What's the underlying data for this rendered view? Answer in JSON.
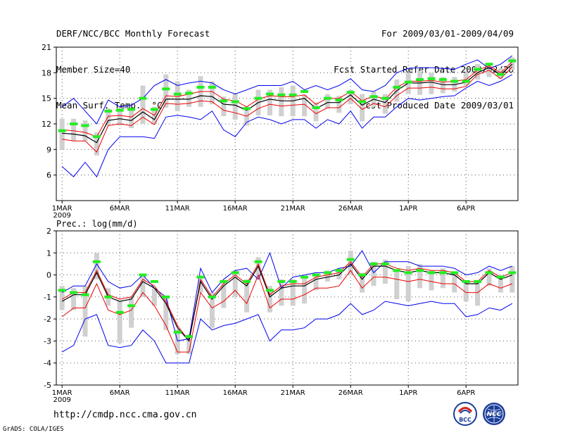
{
  "header": {
    "title": "DERF/NCC/BCC Monthly Forecast",
    "member_size": "Member Size=40",
    "variable": "Mean Surf. Temp.: °C",
    "period": "For 2009/03/01-2009/04/09",
    "started": "Fcst Started Refer Date 2009/02/28",
    "produced": "Fcst Produced Date 2009/03/01"
  },
  "footer": {
    "url": "http://cmdp.ncc.cma.gov.cn",
    "credit": "GrADS: COLA/IGES",
    "logo_bcc_text": "BCC",
    "logo_ncc_text": "NCC"
  },
  "colors": {
    "envelope": "#0000ee",
    "quartile": "#ee0000",
    "median": "#000000",
    "bar": "#d0d0d0",
    "mark": "#22ee22",
    "grid": "#555555"
  },
  "chart_data": [
    {
      "type": "line",
      "title": "Mean Surf. Temp.: °C",
      "x_tick_labels": [
        "1MAR",
        "6MAR",
        "11MAR",
        "16MAR",
        "21MAR",
        "26MAR",
        "1APR",
        "6APR"
      ],
      "x_year_label": "2009",
      "days": 40,
      "ylim": [
        3,
        21
      ],
      "yticks": [
        6,
        9,
        12,
        15,
        18,
        21
      ],
      "series": [
        {
          "name": "max",
          "values": [
            14.0,
            15.0,
            13.5,
            12.0,
            14.8,
            14.0,
            14.2,
            15.0,
            16.5,
            17.2,
            16.5,
            16.8,
            17.0,
            16.8,
            16.0,
            15.5,
            16.0,
            16.5,
            16.5,
            16.5,
            17.0,
            16.0,
            16.5,
            16.0,
            16.5,
            17.3,
            16.0,
            15.8,
            16.5,
            18.0,
            18.5,
            18.6,
            18.6,
            18.5,
            18.4,
            19.0,
            19.5,
            18.5,
            19.0,
            20.0
          ]
        },
        {
          "name": "q75",
          "values": [
            11.3,
            11.2,
            11.0,
            10.5,
            12.9,
            13.0,
            12.8,
            13.8,
            13.0,
            15.3,
            15.2,
            15.5,
            15.8,
            15.8,
            14.9,
            14.7,
            14.0,
            14.9,
            15.3,
            15.2,
            15.2,
            15.4,
            14.3,
            15.0,
            15.0,
            15.8,
            14.7,
            15.3,
            14.9,
            16.3,
            17.0,
            17.0,
            17.1,
            16.9,
            17.0,
            17.2,
            18.3,
            18.8,
            18.0,
            19.3
          ]
        },
        {
          "name": "median",
          "values": [
            10.9,
            10.8,
            10.6,
            9.8,
            12.4,
            12.6,
            12.4,
            13.4,
            12.5,
            14.9,
            14.9,
            14.9,
            15.3,
            15.2,
            14.3,
            14.2,
            13.6,
            14.5,
            14.9,
            14.7,
            14.7,
            15.0,
            13.8,
            14.5,
            14.5,
            15.4,
            14.2,
            14.9,
            14.5,
            15.9,
            16.8,
            16.8,
            16.9,
            16.6,
            16.6,
            16.9,
            18.0,
            18.6,
            17.8,
            19.0
          ]
        },
        {
          "name": "q25",
          "values": [
            10.2,
            10.0,
            10.0,
            8.7,
            11.8,
            12.0,
            11.8,
            12.8,
            11.9,
            14.4,
            14.3,
            14.4,
            14.7,
            14.6,
            13.6,
            13.3,
            12.9,
            13.8,
            14.3,
            14.1,
            14.2,
            14.3,
            13.2,
            13.9,
            13.9,
            15.0,
            13.7,
            14.4,
            14.0,
            15.3,
            16.2,
            16.2,
            16.3,
            16.1,
            16.1,
            16.4,
            17.8,
            18.3,
            17.3,
            18.7
          ]
        },
        {
          "name": "min",
          "values": [
            7.0,
            5.8,
            7.5,
            5.8,
            9.0,
            10.5,
            10.5,
            10.5,
            10.3,
            12.8,
            13.0,
            12.8,
            12.5,
            13.5,
            11.3,
            10.5,
            12.2,
            12.8,
            12.5,
            12.0,
            12.5,
            12.5,
            11.5,
            12.5,
            12.0,
            13.5,
            11.5,
            12.8,
            12.8,
            14.0,
            15.0,
            14.8,
            15.0,
            15.2,
            15.3,
            16.2,
            17.0,
            16.5,
            17.0,
            17.8
          ]
        },
        {
          "name": "bar_top",
          "values": [
            12.6,
            12.6,
            12.4,
            11.0,
            13.8,
            13.9,
            13.7,
            16.5,
            14.0,
            17.8,
            17.0,
            16.0,
            17.6,
            17.0,
            15.2,
            15.5,
            14.0,
            16.0,
            16.0,
            16.3,
            16.5,
            15.4,
            14.5,
            15.5,
            15.3,
            16.0,
            15.5,
            15.8,
            15.5,
            17.2,
            18.0,
            18.2,
            18.0,
            17.5,
            17.5,
            18.0,
            19.0,
            19.0,
            18.5,
            19.8
          ]
        },
        {
          "name": "bar_bottom",
          "values": [
            9.0,
            10.0,
            10.0,
            8.3,
            11.8,
            11.8,
            11.5,
            12.0,
            12.0,
            13.9,
            13.5,
            14.0,
            14.0,
            14.3,
            12.9,
            12.5,
            11.8,
            13.0,
            13.0,
            12.9,
            12.9,
            12.9,
            12.3,
            13.8,
            13.3,
            14.3,
            12.3,
            14.0,
            13.2,
            14.6,
            15.5,
            15.4,
            15.5,
            15.6,
            15.8,
            16.5,
            17.2,
            17.5,
            17.3,
            18.3
          ]
        },
        {
          "name": "mark",
          "values": [
            11.2,
            12.0,
            11.8,
            10.5,
            13.5,
            13.6,
            13.7,
            15.0,
            13.7,
            16.1,
            15.5,
            15.6,
            16.3,
            16.3,
            14.7,
            14.6,
            13.8,
            15.0,
            15.5,
            15.4,
            15.4,
            15.8,
            13.9,
            15.0,
            14.8,
            15.7,
            14.6,
            15.2,
            15.0,
            16.3,
            16.9,
            17.2,
            17.3,
            17.2,
            17.0,
            17.0,
            18.4,
            19.0,
            17.8,
            19.4
          ]
        }
      ]
    },
    {
      "type": "line",
      "title": "Prec.: log(mm/d)",
      "x_tick_labels": [
        "1MAR",
        "6MAR",
        "11MAR",
        "16MAR",
        "21MAR",
        "26MAR",
        "1APR",
        "6APR"
      ],
      "x_year_label": "2009",
      "days": 40,
      "ylim": [
        -5,
        2
      ],
      "yticks": [
        -5,
        -4,
        -3,
        -2,
        -1,
        0,
        1,
        2
      ],
      "series": [
        {
          "name": "max",
          "values": [
            -0.8,
            -0.5,
            -0.5,
            0.5,
            -0.3,
            -0.6,
            -0.5,
            0.0,
            -0.6,
            -1.0,
            -3.0,
            -2.9,
            0.3,
            -0.8,
            -0.2,
            0.2,
            0.3,
            -0.2,
            1.0,
            -0.6,
            -0.1,
            0.0,
            0.1,
            0.1,
            0.3,
            0.4,
            1.1,
            0.1,
            0.6,
            0.6,
            0.6,
            0.4,
            0.4,
            0.4,
            0.3,
            0.0,
            0.1,
            0.4,
            0.2,
            0.4
          ]
        },
        {
          "name": "q75",
          "values": [
            -1.1,
            -0.8,
            -0.8,
            0.2,
            -0.9,
            -1.1,
            -1.0,
            -0.2,
            -0.5,
            -1.2,
            -2.3,
            -3.0,
            -0.2,
            -1.0,
            -0.4,
            0.0,
            -0.4,
            0.5,
            -0.9,
            -0.5,
            -0.4,
            -0.4,
            -0.1,
            0.0,
            0.1,
            0.6,
            -0.1,
            0.5,
            0.5,
            0.3,
            0.2,
            0.3,
            0.2,
            0.2,
            0.1,
            -0.3,
            -0.3,
            0.2,
            -0.1,
            0.1
          ]
        },
        {
          "name": "median",
          "values": [
            -1.2,
            -0.9,
            -0.9,
            0.1,
            -1.0,
            -1.2,
            -1.1,
            -0.3,
            -0.6,
            -1.3,
            -2.4,
            -3.0,
            -0.3,
            -1.1,
            -0.5,
            -0.1,
            -0.5,
            0.4,
            -1.0,
            -0.6,
            -0.5,
            -0.5,
            -0.2,
            -0.1,
            0.0,
            0.5,
            -0.2,
            0.4,
            0.4,
            0.2,
            0.1,
            0.2,
            0.1,
            0.1,
            0.0,
            -0.4,
            -0.4,
            0.1,
            -0.2,
            0.0
          ]
        },
        {
          "name": "q25",
          "values": [
            -1.9,
            -1.5,
            -1.5,
            -0.4,
            -1.6,
            -1.8,
            -1.6,
            -0.8,
            -1.4,
            -2.3,
            -3.5,
            -3.5,
            -0.8,
            -1.5,
            -1.2,
            -0.7,
            -1.3,
            0.0,
            -1.5,
            -1.1,
            -1.1,
            -0.9,
            -0.6,
            -0.6,
            -0.5,
            0.2,
            -0.6,
            -0.1,
            -0.1,
            -0.2,
            -0.3,
            -0.2,
            -0.3,
            -0.4,
            -0.4,
            -0.8,
            -0.8,
            -0.4,
            -0.6,
            -0.4
          ]
        },
        {
          "name": "min",
          "values": [
            -3.5,
            -3.2,
            -2.0,
            -1.8,
            -3.2,
            -3.3,
            -3.2,
            -2.5,
            -3.0,
            -4.0,
            -4.0,
            -4.0,
            -2.0,
            -2.5,
            -2.3,
            -2.2,
            -2.0,
            -1.8,
            -3.0,
            -2.5,
            -2.5,
            -2.4,
            -2.0,
            -2.0,
            -1.8,
            -1.3,
            -1.8,
            -1.6,
            -1.2,
            -1.3,
            -1.4,
            -1.3,
            -1.2,
            -1.3,
            -1.3,
            -1.9,
            -1.8,
            -1.5,
            -1.6,
            -1.3
          ]
        },
        {
          "name": "bar_top",
          "values": [
            -0.5,
            -0.6,
            -0.5,
            1.0,
            -0.6,
            -1.2,
            -1.0,
            0.0,
            -0.6,
            -1.0,
            -2.5,
            -2.7,
            -0.2,
            -0.8,
            -0.3,
            0.2,
            -0.2,
            0.8,
            -0.5,
            -0.2,
            -0.2,
            -0.1,
            0.0,
            0.2,
            0.3,
            1.1,
            0.1,
            0.6,
            0.7,
            0.2,
            0.4,
            0.5,
            0.2,
            0.3,
            0.1,
            -0.3,
            -0.3,
            0.3,
            0.0,
            0.4
          ]
        },
        {
          "name": "bar_bottom",
          "values": [
            -1.6,
            -1.6,
            -2.8,
            -0.2,
            -1.4,
            -3.1,
            -2.4,
            -1.0,
            -1.4,
            -2.5,
            -3.6,
            -3.6,
            -0.8,
            -2.4,
            -1.5,
            -1.0,
            -1.7,
            -0.2,
            -1.7,
            -1.4,
            -1.4,
            -1.3,
            -0.7,
            -0.3,
            -0.2,
            0.0,
            -0.8,
            -0.5,
            -0.4,
            -1.1,
            -1.2,
            -0.6,
            -0.7,
            -0.6,
            -0.8,
            -1.2,
            -1.4,
            -0.5,
            -0.8,
            -0.8
          ]
        },
        {
          "name": "mark",
          "values": [
            -0.7,
            -0.8,
            -0.9,
            0.6,
            -1.0,
            -1.7,
            -1.4,
            0.0,
            -0.3,
            -1.0,
            -2.6,
            -2.8,
            -0.1,
            -1.0,
            -0.3,
            0.1,
            -0.3,
            0.6,
            -0.7,
            -0.3,
            -0.3,
            -0.1,
            0.0,
            0.1,
            0.2,
            0.7,
            0.0,
            0.5,
            0.5,
            0.2,
            0.1,
            0.2,
            0.1,
            0.1,
            0.1,
            -0.3,
            -0.3,
            0.1,
            -0.1,
            0.1
          ]
        }
      ]
    }
  ]
}
